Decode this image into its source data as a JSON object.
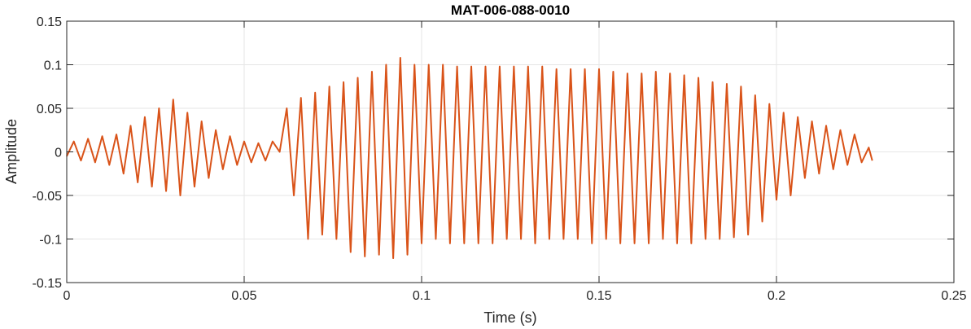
{
  "chart_data": {
    "type": "line",
    "title": "MAT-006-088-0010",
    "xlabel": "Time (s)",
    "ylabel": "Amplitude",
    "xlim": [
      0,
      0.25
    ],
    "ylim": [
      -0.15,
      0.15
    ],
    "xticks": [
      0,
      0.05,
      0.1,
      0.15,
      0.2,
      0.25
    ],
    "xtick_labels": [
      "0",
      "0.05",
      "0.1",
      "0.15",
      "0.2",
      "0.25"
    ],
    "yticks": [
      -0.15,
      -0.1,
      -0.05,
      0,
      0.05,
      0.1,
      0.15
    ],
    "ytick_labels": [
      "-0.15",
      "-0.1",
      "-0.05",
      "0",
      "0.05",
      "0.1",
      "0.15"
    ],
    "grid": true,
    "line_color": "#D95319",
    "series": [
      {
        "x": [
          0,
          0.002,
          0.004,
          0.006,
          0.008,
          0.01,
          0.012,
          0.014,
          0.016,
          0.018,
          0.02,
          0.022,
          0.024,
          0.026,
          0.028,
          0.03,
          0.032,
          0.034,
          0.036,
          0.038,
          0.04,
          0.042,
          0.044,
          0.046,
          0.048,
          0.05,
          0.052,
          0.054,
          0.056,
          0.058,
          0.06,
          0.062,
          0.064,
          0.066,
          0.068,
          0.07,
          0.072,
          0.074,
          0.076,
          0.078,
          0.08,
          0.082,
          0.084,
          0.086,
          0.088,
          0.09,
          0.092,
          0.094,
          0.096,
          0.098,
          0.1,
          0.102,
          0.104,
          0.106,
          0.108,
          0.11,
          0.112,
          0.114,
          0.116,
          0.118,
          0.12,
          0.122,
          0.124,
          0.126,
          0.128,
          0.13,
          0.132,
          0.134,
          0.136,
          0.138,
          0.14,
          0.142,
          0.144,
          0.146,
          0.148,
          0.15,
          0.152,
          0.154,
          0.156,
          0.158,
          0.16,
          0.162,
          0.164,
          0.166,
          0.168,
          0.17,
          0.172,
          0.174,
          0.176,
          0.178,
          0.18,
          0.182,
          0.184,
          0.186,
          0.188,
          0.19,
          0.192,
          0.194,
          0.196,
          0.198,
          0.2,
          0.202,
          0.204,
          0.206,
          0.208,
          0.21,
          0.212,
          0.214,
          0.216,
          0.218,
          0.22,
          0.222,
          0.224,
          0.226,
          0.227
        ],
        "y": [
          -0.005,
          0.012,
          -0.01,
          0.015,
          -0.012,
          0.018,
          -0.015,
          0.02,
          -0.025,
          0.03,
          -0.035,
          0.04,
          -0.04,
          0.05,
          -0.045,
          0.06,
          -0.05,
          0.045,
          -0.04,
          0.035,
          -0.03,
          0.025,
          -0.02,
          0.018,
          -0.015,
          0.012,
          -0.012,
          0.01,
          -0.01,
          0.012,
          0.0,
          0.05,
          -0.05,
          0.062,
          -0.1,
          0.068,
          -0.095,
          0.075,
          -0.1,
          0.08,
          -0.115,
          0.085,
          -0.12,
          0.092,
          -0.118,
          0.1,
          -0.122,
          0.108,
          -0.118,
          0.1,
          -0.105,
          0.1,
          -0.1,
          0.1,
          -0.105,
          0.098,
          -0.105,
          0.098,
          -0.105,
          0.098,
          -0.105,
          0.098,
          -0.1,
          0.098,
          -0.1,
          0.098,
          -0.105,
          0.098,
          -0.1,
          0.095,
          -0.1,
          0.095,
          -0.1,
          0.095,
          -0.105,
          0.095,
          -0.1,
          0.092,
          -0.105,
          0.09,
          -0.105,
          0.09,
          -0.105,
          0.092,
          -0.1,
          0.09,
          -0.105,
          0.088,
          -0.105,
          0.085,
          -0.1,
          0.08,
          -0.1,
          0.078,
          -0.098,
          0.075,
          -0.095,
          0.065,
          -0.08,
          0.055,
          -0.055,
          0.045,
          -0.05,
          0.04,
          -0.03,
          0.035,
          -0.025,
          0.03,
          -0.02,
          0.025,
          -0.015,
          0.02,
          -0.012,
          0.005,
          -0.01
        ]
      }
    ]
  }
}
